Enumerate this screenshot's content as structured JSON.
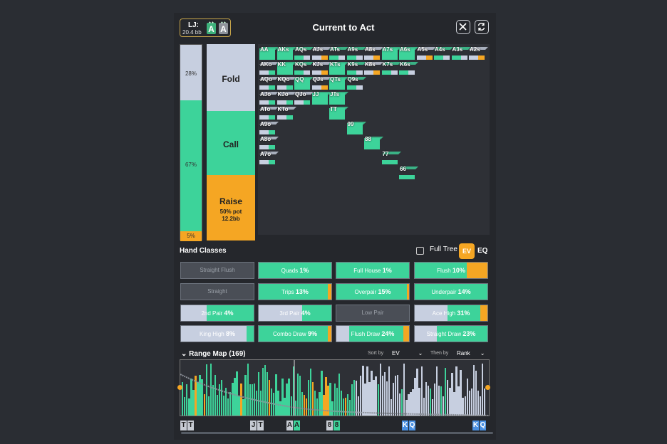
{
  "header": {
    "position": "LJ:",
    "stack": "20.4 bb",
    "card1": "A",
    "card2": "A",
    "title": "Current to Act"
  },
  "left_bar": {
    "fold_pct": "28%",
    "call_pct": "67%",
    "raise_pct": "5%",
    "fold": 0.28,
    "call": 0.67,
    "raise": 0.05
  },
  "actions": {
    "fold": "Fold",
    "call": "Call",
    "raise": "Raise",
    "raise_size": "50% pot",
    "raise_bb": "12.2bb"
  },
  "grid_labels": [
    "AA",
    "AKs",
    "AQs",
    "AJs",
    "ATs",
    "A9s",
    "A8s",
    "A7s",
    "A6s",
    "A5s",
    "A4s",
    "A3s",
    "A2s",
    "AKo",
    "KK",
    "KQs",
    "KJs",
    "KTs",
    "K9s",
    "K8s",
    "K7s",
    "K6s",
    "AQo",
    "KQo",
    "QQ",
    "QJs",
    "QTs",
    "Q9s",
    "AJo",
    "KJo",
    "QJo",
    "JJ",
    "JTs",
    "ATo",
    "KTo",
    "TT",
    "A9o",
    "99",
    "A8o",
    "88",
    "A7o",
    "77",
    "66"
  ],
  "hand_classes_title": "Hand Classes",
  "full_tree": "Full Tree",
  "ev": "EV",
  "eq": "EQ",
  "hand_classes": [
    {
      "label": "Straight Flush",
      "pct": "",
      "dim": true
    },
    {
      "label": "Quads",
      "pct": "1%",
      "dim": false
    },
    {
      "label": "Full House",
      "pct": "1%",
      "dim": false
    },
    {
      "label": "Flush",
      "pct": "10%",
      "dim": false
    },
    {
      "label": "Straight",
      "pct": "",
      "dim": true
    },
    {
      "label": "Trips",
      "pct": "13%",
      "dim": false
    },
    {
      "label": "Overpair",
      "pct": "15%",
      "dim": false
    },
    {
      "label": "Underpair",
      "pct": "14%",
      "dim": false
    },
    {
      "label": "2nd Pair",
      "pct": "4%",
      "dim": false
    },
    {
      "label": "3rd Pair",
      "pct": "4%",
      "dim": false
    },
    {
      "label": "Low Pair",
      "pct": "",
      "dim": true
    },
    {
      "label": "Ace High",
      "pct": "31%",
      "dim": false
    },
    {
      "label": "King High",
      "pct": "8%",
      "dim": false
    },
    {
      "label": "Combo Draw",
      "pct": "9%",
      "dim": false
    },
    {
      "label": "Flush Draw",
      "pct": "24%",
      "dim": false
    },
    {
      "label": "Straight Draw",
      "pct": "23%",
      "dim": false
    }
  ],
  "range_map": {
    "title": "Range Map (169)",
    "sort_by_label": "Sort by",
    "sort_by": "EV",
    "then_by_label": "Then by",
    "then_by": "Rank"
  },
  "range_hands": [
    "TT",
    "JT",
    "AA",
    "88",
    "KQ",
    "KQ"
  ],
  "colors": {
    "fold": "#c7cfe0",
    "call": "#3dd39a",
    "raise": "#f5a623",
    "bg": "#2a2d33"
  }
}
